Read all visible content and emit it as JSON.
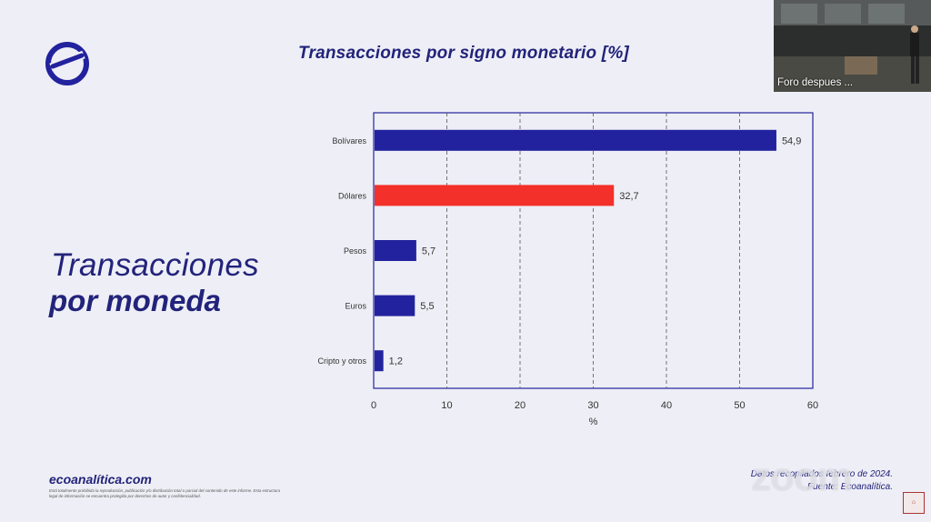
{
  "slide": {
    "chart_title": "Transacciones por signo monetario [%]",
    "section_title_line1": "Transacciones",
    "section_title_line2": "por moneda",
    "brand_site": "ecoanalítica.com",
    "fine_print": "Está totalmente prohibida la reproducción, publicación y/o distribución total o parcial del contenido de este informe. Esta estructura legal de información se encuentra protegida por derechos de autor y confidencialidad.",
    "footer_line1": "Datos recopilados febrero de 2024.",
    "footer_line2": "Fuente: Ecoanalítica."
  },
  "video": {
    "participant_label": "Foro despues ..."
  },
  "watermark": "zoom",
  "colors": {
    "navy": "#22229e",
    "red": "#f4302a",
    "text": "#22237a"
  },
  "chart_data": {
    "type": "bar",
    "orientation": "horizontal",
    "title": "Transacciones por signo monetario [%]",
    "xlabel": "%",
    "ylabel": "",
    "categories": [
      "Bolívares",
      "Dólares",
      "Pesos",
      "Euros",
      "Cripto y otros"
    ],
    "values": [
      54.9,
      32.7,
      5.7,
      5.5,
      1.2
    ],
    "value_labels": [
      "54,9",
      "32,7",
      "5,7",
      "5,5",
      "1,2"
    ],
    "bar_colors": [
      "#22229e",
      "#f4302a",
      "#22229e",
      "#22229e",
      "#22229e"
    ],
    "xlim": [
      0,
      60
    ],
    "xticks": [
      0,
      10,
      20,
      30,
      40,
      50,
      60
    ],
    "grid": "vertical dashed"
  }
}
